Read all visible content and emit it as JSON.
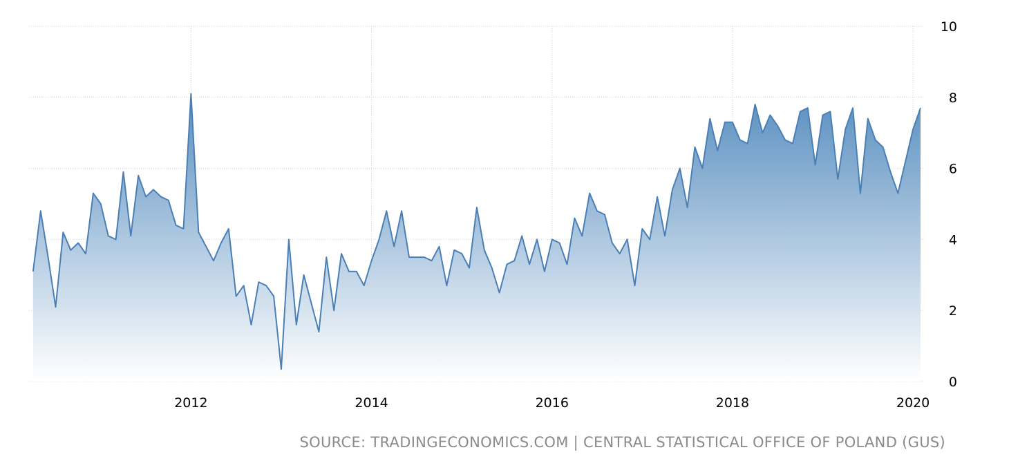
{
  "chart_data": {
    "type": "area",
    "title": "",
    "xlabel": "",
    "ylabel": "",
    "ylim": [
      0,
      10
    ],
    "xlim": [
      "2010-03-15",
      "2020-02-15"
    ],
    "x_ticks": [
      "2012",
      "2014",
      "2016",
      "2018",
      "2020"
    ],
    "y_ticks": [
      "0",
      "2",
      "4",
      "6",
      "8",
      "10"
    ],
    "grid": true,
    "legend": "none",
    "colors": {
      "line": "#4a7fb5",
      "fill_top": "#5a8fc0",
      "fill_bottom": "#ffffff",
      "grid": "#cfcfcf"
    },
    "series": [
      {
        "x": [
          "2010-04",
          "2010-05",
          "2010-06",
          "2010-07",
          "2010-08",
          "2010-09",
          "2010-10",
          "2010-11",
          "2010-12",
          "2011-01",
          "2011-02",
          "2011-03",
          "2011-04",
          "2011-05",
          "2011-06",
          "2011-07",
          "2011-08",
          "2011-09",
          "2011-10",
          "2011-11",
          "2011-12",
          "2012-01",
          "2012-02",
          "2012-03",
          "2012-04",
          "2012-05",
          "2012-06",
          "2012-07",
          "2012-08",
          "2012-09",
          "2012-10",
          "2012-11",
          "2012-12",
          "2013-01",
          "2013-02",
          "2013-03",
          "2013-04",
          "2013-05",
          "2013-06",
          "2013-07",
          "2013-08",
          "2013-09",
          "2013-10",
          "2013-11",
          "2013-12",
          "2014-01",
          "2014-02",
          "2014-03",
          "2014-04",
          "2014-05",
          "2014-06",
          "2014-07",
          "2014-08",
          "2014-09",
          "2014-10",
          "2014-11",
          "2014-12",
          "2015-01",
          "2015-02",
          "2015-03",
          "2015-04",
          "2015-05",
          "2015-06",
          "2015-07",
          "2015-08",
          "2015-09",
          "2015-10",
          "2015-11",
          "2015-12",
          "2016-01",
          "2016-02",
          "2016-03",
          "2016-04",
          "2016-05",
          "2016-06",
          "2016-07",
          "2016-08",
          "2016-09",
          "2016-10",
          "2016-11",
          "2016-12",
          "2017-01",
          "2017-02",
          "2017-03",
          "2017-04",
          "2017-05",
          "2017-06",
          "2017-07",
          "2017-08",
          "2017-09",
          "2017-10",
          "2017-11",
          "2017-12",
          "2018-01",
          "2018-02",
          "2018-03",
          "2018-04",
          "2018-05",
          "2018-06",
          "2018-07",
          "2018-08",
          "2018-09",
          "2018-10",
          "2018-11",
          "2018-12",
          "2019-01",
          "2019-02",
          "2019-03",
          "2019-04",
          "2019-05",
          "2019-06",
          "2019-07",
          "2019-08",
          "2019-09",
          "2019-10",
          "2019-11",
          "2019-12",
          "2020-01",
          "2020-02"
        ],
        "values": [
          3.1,
          4.8,
          3.5,
          2.1,
          4.2,
          3.7,
          3.9,
          3.6,
          5.3,
          5.0,
          4.1,
          4.0,
          5.9,
          4.1,
          5.8,
          5.2,
          5.4,
          5.2,
          5.1,
          4.4,
          4.3,
          8.1,
          4.2,
          3.8,
          3.4,
          3.9,
          4.3,
          2.4,
          2.7,
          1.6,
          2.8,
          2.7,
          2.4,
          0.35,
          4.0,
          1.6,
          3.0,
          2.2,
          1.4,
          3.5,
          2.0,
          3.6,
          3.1,
          3.1,
          2.7,
          3.4,
          4.0,
          4.8,
          3.8,
          4.8,
          3.5,
          3.5,
          3.5,
          3.4,
          3.8,
          2.7,
          3.7,
          3.6,
          3.2,
          4.9,
          3.7,
          3.2,
          2.5,
          3.3,
          3.4,
          4.1,
          3.3,
          4.0,
          3.1,
          4.0,
          3.9,
          3.3,
          4.6,
          4.1,
          5.3,
          4.8,
          4.7,
          3.9,
          3.6,
          4.0,
          2.7,
          4.3,
          4.0,
          5.2,
          4.1,
          5.4,
          6.0,
          4.9,
          6.6,
          6.0,
          7.4,
          6.5,
          7.3,
          7.3,
          6.8,
          6.7,
          7.8,
          7.0,
          7.5,
          7.2,
          6.8,
          6.7,
          7.6,
          7.7,
          6.1,
          7.5,
          7.6,
          5.7,
          7.1,
          7.7,
          5.3,
          7.4,
          6.8,
          6.6,
          5.9,
          5.3,
          6.2,
          7.1,
          7.7
        ]
      }
    ]
  },
  "source_text": "SOURCE: TRADINGECONOMICS.COM | CENTRAL STATISTICAL OFFICE OF POLAND (GUS)"
}
